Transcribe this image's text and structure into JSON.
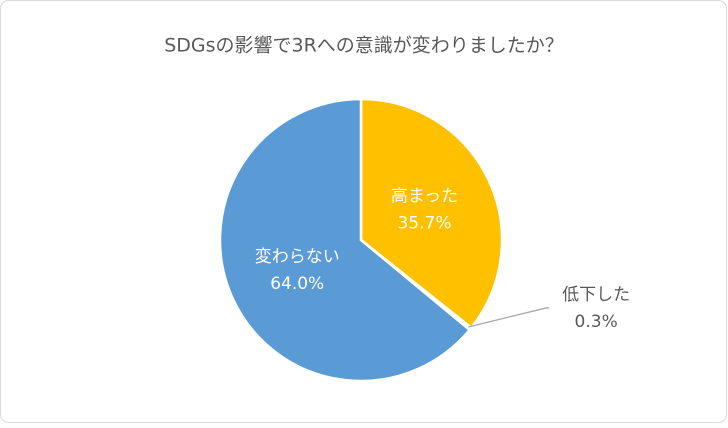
{
  "chart_data": {
    "type": "pie",
    "title": "SDGsの影響で3Rへの意識が変わりましたか？",
    "categories": [
      "高まった",
      "低下した",
      "変わらない"
    ],
    "values": [
      35.7,
      0.3,
      64.0
    ],
    "value_labels": [
      "35.7%",
      "0.3%",
      "64.0%"
    ],
    "colors": [
      "#FFC000",
      "#A5A5A5",
      "#5B9BD5"
    ]
  }
}
